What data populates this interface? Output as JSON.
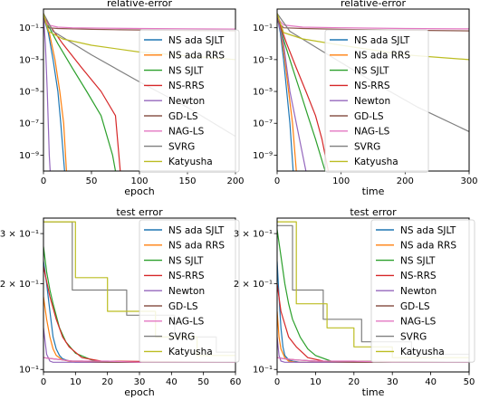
{
  "colors": [
    "#1f77b4",
    "#ff7f0e",
    "#2ca02c",
    "#d62728",
    "#9467bd",
    "#8c564b",
    "#e377c2",
    "#7f7f7f",
    "#bcbd22"
  ],
  "chart_data": [
    {
      "id": "p1",
      "type": "line",
      "title": "relative-error",
      "xlabel": "epoch",
      "ylabel": "",
      "yscale": "log",
      "xlim": [
        0,
        200
      ],
      "ylim": [
        1e-10,
        1.5
      ],
      "xticks": [
        0,
        50,
        100,
        150,
        200
      ],
      "xtick_labels": [
        "0",
        "50",
        "100",
        "150",
        "200"
      ],
      "yticks": [
        0.1,
        0.001,
        1e-05,
        1e-07,
        1e-09
      ],
      "ytick_labels": [
        "10⁻¹",
        "10⁻³",
        "10⁻⁵",
        "10⁻⁷",
        "10⁻⁹"
      ],
      "grid": false,
      "legend_position": "right",
      "series": [
        {
          "name": "NS ada SJLT",
          "x": [
            0,
            5,
            10,
            15,
            18,
            22
          ],
          "y": [
            0.5,
            0.05,
            0.001,
            1e-05,
            1e-07,
            1e-10
          ]
        },
        {
          "name": "NS ada RRS",
          "x": [
            0,
            6,
            12,
            17,
            21,
            24
          ],
          "y": [
            0.5,
            0.05,
            0.001,
            1e-05,
            1e-07,
            1e-10
          ]
        },
        {
          "name": "NS SJLT",
          "x": [
            0,
            15,
            30,
            45,
            60,
            72,
            75
          ],
          "y": [
            0.5,
            0.01,
            0.0003,
            1e-05,
            3e-07,
            1e-09,
            1e-10
          ]
        },
        {
          "name": "NS-RRS",
          "x": [
            0,
            20,
            40,
            60,
            75,
            80
          ],
          "y": [
            0.5,
            0.01,
            0.0003,
            1e-05,
            3e-07,
            1e-10
          ]
        },
        {
          "name": "Newton",
          "x": [
            0,
            2,
            4,
            6,
            7
          ],
          "y": [
            0.5,
            0.01,
            1e-05,
            1e-09,
            1e-10
          ]
        },
        {
          "name": "GD-LS",
          "x": [
            0,
            2,
            5,
            15,
            30,
            50,
            80,
            120,
            160,
            200
          ],
          "y": [
            0.8,
            0.2,
            0.1,
            0.09,
            0.085,
            0.08,
            0.075,
            0.07,
            0.066,
            0.063
          ]
        },
        {
          "name": "NAG-LS",
          "x": [
            0,
            2,
            5,
            15,
            30,
            60,
            100,
            150,
            200
          ],
          "y": [
            0.8,
            0.3,
            0.15,
            0.11,
            0.1,
            0.095,
            0.09,
            0.086,
            0.083
          ]
        },
        {
          "name": "SVRG",
          "x": [
            0,
            10,
            50,
            100,
            150,
            200
          ],
          "y": [
            0.8,
            0.06,
            0.002,
            4e-05,
            1e-06,
            1.5e-08
          ]
        },
        {
          "name": "Katyusha",
          "x": [
            0,
            5,
            20,
            50,
            100,
            150,
            200
          ],
          "y": [
            0.8,
            0.06,
            0.02,
            0.008,
            0.003,
            0.0017,
            0.001
          ]
        }
      ]
    },
    {
      "id": "p2",
      "type": "line",
      "title": "relative-error",
      "xlabel": "time",
      "ylabel": "",
      "yscale": "log",
      "xlim": [
        0,
        300
      ],
      "ylim": [
        1e-10,
        1.5
      ],
      "xticks": [
        0,
        100,
        200,
        300
      ],
      "xtick_labels": [
        "0",
        "100",
        "200",
        "300"
      ],
      "yticks": [
        0.1,
        0.001,
        1e-05,
        1e-07,
        1e-09
      ],
      "ytick_labels": [
        "10⁻¹",
        "10⁻³",
        "10⁻⁵",
        "10⁻⁷",
        "10⁻⁹"
      ],
      "grid": false,
      "legend_position": "right",
      "series": [
        {
          "name": "NS ada SJLT",
          "x": [
            0,
            5,
            10,
            15,
            20,
            25
          ],
          "y": [
            0.5,
            0.05,
            0.001,
            1e-05,
            1e-07,
            1e-10
          ]
        },
        {
          "name": "NS ada RRS",
          "x": [
            0,
            6,
            12,
            18,
            24,
            30
          ],
          "y": [
            0.5,
            0.05,
            0.001,
            1e-05,
            1e-07,
            1e-10
          ]
        },
        {
          "name": "NS SJLT",
          "x": [
            0,
            12,
            24,
            36,
            48,
            60,
            75
          ],
          "y": [
            0.5,
            0.01,
            0.0003,
            1e-05,
            3e-07,
            1e-08,
            1e-10
          ]
        },
        {
          "name": "NS-RRS",
          "x": [
            0,
            15,
            30,
            45,
            60,
            70,
            80
          ],
          "y": [
            0.5,
            0.01,
            0.0003,
            1e-05,
            3e-07,
            1e-08,
            1e-10
          ]
        },
        {
          "name": "Newton",
          "x": [
            0,
            10,
            20,
            35,
            45
          ],
          "y": [
            0.5,
            0.01,
            1e-05,
            1e-08,
            1e-10
          ]
        },
        {
          "name": "GD-LS",
          "x": [
            0,
            3,
            10,
            40,
            100,
            200,
            300
          ],
          "y": [
            0.8,
            0.2,
            0.1,
            0.09,
            0.08,
            0.07,
            0.064
          ]
        },
        {
          "name": "NAG-LS",
          "x": [
            0,
            3,
            10,
            40,
            100,
            200,
            300
          ],
          "y": [
            0.8,
            0.3,
            0.15,
            0.11,
            0.1,
            0.09,
            0.085
          ]
        },
        {
          "name": "SVRG",
          "x": [
            0,
            20,
            80,
            150,
            220,
            300
          ],
          "y": [
            0.8,
            0.06,
            0.002,
            4e-05,
            1e-06,
            3e-08
          ]
        },
        {
          "name": "Katyusha",
          "x": [
            0,
            10,
            40,
            100,
            200,
            300
          ],
          "y": [
            0.8,
            0.05,
            0.02,
            0.008,
            0.002,
            0.001
          ]
        }
      ]
    },
    {
      "id": "p3",
      "type": "line",
      "title": "test error",
      "xlabel": "epoch",
      "ylabel": "",
      "yscale": "log",
      "xlim": [
        0,
        60
      ],
      "ylim": [
        0.098,
        0.34
      ],
      "xticks": [
        0,
        10,
        20,
        30,
        40,
        50,
        60
      ],
      "xtick_labels": [
        "0",
        "10",
        "20",
        "30",
        "40",
        "50",
        "60"
      ],
      "yticks": [
        0.3,
        0.2,
        0.1
      ],
      "ytick_labels": [
        "3 × 10⁻¹",
        "2 × 10⁻¹",
        "10⁻¹"
      ],
      "grid": false,
      "legend_position": "right",
      "series": [
        {
          "name": "NS ada SJLT",
          "x": [
            0,
            1,
            2,
            3,
            4,
            5,
            6,
            8,
            10,
            15,
            60
          ],
          "y": [
            0.24,
            0.2,
            0.16,
            0.13,
            0.118,
            0.112,
            0.109,
            0.107,
            0.106,
            0.106,
            0.106
          ]
        },
        {
          "name": "NS ada RRS",
          "x": [
            0,
            1,
            2,
            3,
            4,
            6,
            8,
            12,
            60
          ],
          "y": [
            0.18,
            0.15,
            0.13,
            0.118,
            0.112,
            0.108,
            0.107,
            0.106,
            0.106
          ]
        },
        {
          "name": "NS SJLT",
          "x": [
            0,
            1,
            2,
            3,
            5,
            7,
            10,
            15,
            20,
            60
          ],
          "y": [
            0.27,
            0.22,
            0.19,
            0.17,
            0.14,
            0.125,
            0.114,
            0.108,
            0.106,
            0.106
          ]
        },
        {
          "name": "NS-RRS",
          "x": [
            0,
            2,
            4,
            6,
            8,
            12,
            18,
            60
          ],
          "y": [
            0.23,
            0.18,
            0.15,
            0.13,
            0.12,
            0.11,
            0.107,
            0.106
          ]
        },
        {
          "name": "Newton",
          "x": [
            0,
            1,
            2,
            3,
            60
          ],
          "y": [
            0.14,
            0.113,
            0.107,
            0.106,
            0.106
          ]
        },
        {
          "name": "GD-LS",
          "x": [
            0,
            3,
            6,
            9,
            12,
            20,
            30,
            40,
            50,
            60
          ],
          "y": [
            0.11,
            0.109,
            0.108,
            0.107,
            0.107,
            0.106,
            0.106,
            0.106,
            0.106,
            0.106
          ]
        },
        {
          "name": "NAG-LS",
          "x": [
            0,
            3,
            6,
            9,
            12,
            20,
            30,
            40,
            50,
            60
          ],
          "y": [
            0.11,
            0.109,
            0.108,
            0.107,
            0.107,
            0.107,
            0.106,
            0.106,
            0.106,
            0.106
          ]
        },
        {
          "name": "SVRG",
          "x": [
            0,
            9,
            9,
            26,
            26,
            41,
            41,
            54,
            54,
            60
          ],
          "y": [
            0.33,
            0.33,
            0.19,
            0.19,
            0.155,
            0.155,
            0.13,
            0.13,
            0.115,
            0.115
          ]
        },
        {
          "name": "Katyusha",
          "x": [
            0,
            10,
            10,
            20,
            20,
            35,
            35,
            48,
            48,
            60
          ],
          "y": [
            0.33,
            0.33,
            0.21,
            0.21,
            0.16,
            0.16,
            0.13,
            0.13,
            0.112,
            0.112
          ]
        }
      ]
    },
    {
      "id": "p4",
      "type": "line",
      "title": "test error",
      "xlabel": "time",
      "ylabel": "",
      "yscale": "log",
      "xlim": [
        0,
        50
      ],
      "ylim": [
        0.098,
        0.34
      ],
      "xticks": [
        0,
        10,
        20,
        30,
        40,
        50
      ],
      "xtick_labels": [
        "0",
        "10",
        "20",
        "30",
        "40",
        "50"
      ],
      "yticks": [
        0.3,
        0.2,
        0.1
      ],
      "ytick_labels": [
        "3 × 10⁻¹",
        "2 × 10⁻¹",
        "10⁻¹"
      ],
      "grid": false,
      "legend_position": "right",
      "series": [
        {
          "name": "NS ada SJLT",
          "x": [
            0,
            0.5,
            1,
            1.5,
            2,
            3,
            4,
            6,
            50
          ],
          "y": [
            0.24,
            0.18,
            0.14,
            0.12,
            0.112,
            0.108,
            0.107,
            0.106,
            0.106
          ]
        },
        {
          "name": "NS ada RRS",
          "x": [
            0,
            0.5,
            1,
            2,
            3,
            5,
            50
          ],
          "y": [
            0.16,
            0.13,
            0.118,
            0.11,
            0.107,
            0.106,
            0.106
          ]
        },
        {
          "name": "NS SJLT",
          "x": [
            0,
            1,
            2,
            3,
            4,
            6,
            8,
            10,
            14,
            50
          ],
          "y": [
            0.31,
            0.25,
            0.2,
            0.17,
            0.15,
            0.13,
            0.118,
            0.112,
            0.107,
            0.106
          ]
        },
        {
          "name": "NS-RRS",
          "x": [
            0,
            1,
            3,
            5,
            8,
            12,
            50
          ],
          "y": [
            0.2,
            0.16,
            0.13,
            0.12,
            0.11,
            0.107,
            0.106
          ]
        },
        {
          "name": "Newton",
          "x": [
            0,
            0.5,
            1,
            2,
            50
          ],
          "y": [
            0.13,
            0.112,
            0.107,
            0.106,
            0.106
          ]
        },
        {
          "name": "GD-LS",
          "x": [
            0,
            2,
            5,
            10,
            20,
            30,
            40,
            50
          ],
          "y": [
            0.11,
            0.109,
            0.108,
            0.107,
            0.106,
            0.106,
            0.106,
            0.106
          ]
        },
        {
          "name": "NAG-LS",
          "x": [
            0,
            2,
            5,
            10,
            20,
            30,
            40,
            50
          ],
          "y": [
            0.11,
            0.109,
            0.108,
            0.107,
            0.107,
            0.106,
            0.106,
            0.106
          ]
        },
        {
          "name": "SVRG",
          "x": [
            0,
            4,
            4,
            12,
            12,
            22,
            22,
            35,
            35,
            50
          ],
          "y": [
            0.32,
            0.32,
            0.19,
            0.19,
            0.15,
            0.15,
            0.125,
            0.125,
            0.113,
            0.113
          ]
        },
        {
          "name": "Katyusha",
          "x": [
            0,
            5,
            5,
            13,
            13,
            20,
            20,
            30,
            30,
            50
          ],
          "y": [
            0.33,
            0.33,
            0.17,
            0.17,
            0.14,
            0.14,
            0.12,
            0.12,
            0.11,
            0.11
          ]
        }
      ]
    }
  ]
}
